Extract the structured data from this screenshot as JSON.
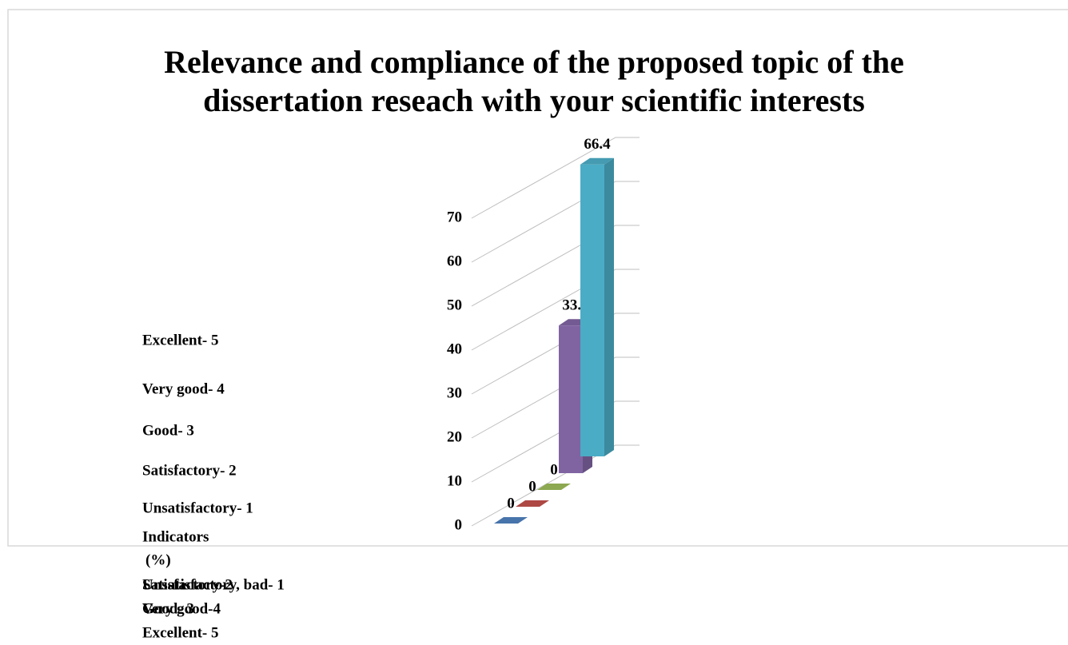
{
  "chart_data": {
    "type": "bar3d",
    "title": [
      "Relevance and compliance of the proposed topic of the",
      "dissertation reseach with your scientific interests"
    ],
    "categories": [
      "Unsatisfactory- 1",
      "Satisfactory- 2",
      "Good- 3",
      "Very good- 4",
      "Excellent- 5"
    ],
    "values": [
      0,
      0,
      0,
      33.6,
      66.4
    ],
    "colors": [
      "#4f81bd",
      "#c0504d",
      "#9bbb59",
      "#8064a2",
      "#4bacc6"
    ],
    "ylim": [
      0,
      70
    ],
    "yticks": [
      0,
      10,
      20,
      30,
      40,
      50,
      60,
      70
    ],
    "grid": true,
    "legend_title": "Indicators",
    "unit": "(%)",
    "footer_labels": [
      "Satisfactory-2",
      "Unsatisfactory, bad- 1",
      "Good- 3",
      "Very good-4",
      "Excellent- 5"
    ]
  }
}
